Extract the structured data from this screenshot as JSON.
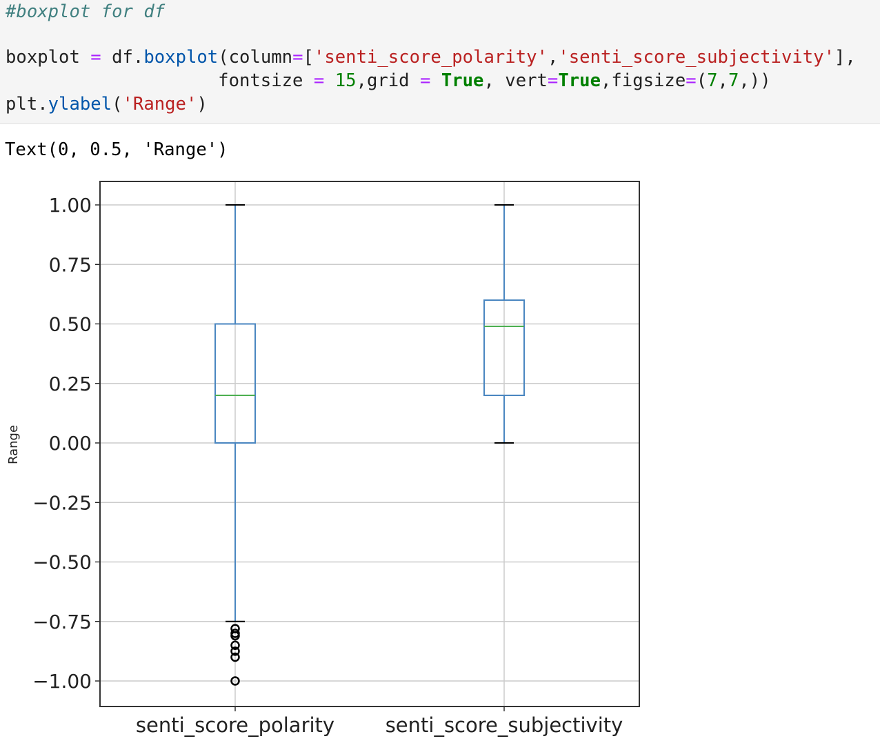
{
  "cell": {
    "code_lines": [
      [
        {
          "t": "#boxplot for df",
          "c": "comment"
        }
      ],
      [],
      [
        {
          "t": "boxplot ",
          "c": ""
        },
        {
          "t": "=",
          "c": "op"
        },
        {
          "t": " df.",
          "c": ""
        },
        {
          "t": "boxplot",
          "c": "call"
        },
        {
          "t": "(column",
          "c": ""
        },
        {
          "t": "=",
          "c": "op"
        },
        {
          "t": "[",
          "c": ""
        },
        {
          "t": "'senti_score_polarity'",
          "c": "str"
        },
        {
          "t": ",",
          "c": ""
        },
        {
          "t": "'senti_score_subjectivity'",
          "c": "str"
        },
        {
          "t": "],",
          "c": ""
        }
      ],
      [
        {
          "t": "                    fontsize ",
          "c": ""
        },
        {
          "t": "=",
          "c": "op"
        },
        {
          "t": " ",
          "c": ""
        },
        {
          "t": "15",
          "c": "num"
        },
        {
          "t": ",grid ",
          "c": ""
        },
        {
          "t": "=",
          "c": "op"
        },
        {
          "t": " ",
          "c": ""
        },
        {
          "t": "True",
          "c": "kw"
        },
        {
          "t": ", vert",
          "c": ""
        },
        {
          "t": "=",
          "c": "op"
        },
        {
          "t": "True",
          "c": "kw"
        },
        {
          "t": ",figsize",
          "c": ""
        },
        {
          "t": "=",
          "c": "op"
        },
        {
          "t": "(",
          "c": ""
        },
        {
          "t": "7",
          "c": "num"
        },
        {
          "t": ",",
          "c": ""
        },
        {
          "t": "7",
          "c": "num"
        },
        {
          "t": ",))",
          "c": ""
        }
      ],
      [
        {
          "t": "plt.",
          "c": ""
        },
        {
          "t": "ylabel",
          "c": "call"
        },
        {
          "t": "(",
          "c": ""
        },
        {
          "t": "'Range'",
          "c": "str"
        },
        {
          "t": ")",
          "c": ""
        }
      ]
    ],
    "output_text": "Text(0, 0.5, 'Range')"
  },
  "chart_data": {
    "type": "boxplot",
    "title": "",
    "xlabel": "",
    "ylabel": "Range",
    "ylim": [
      -1.1,
      1.1
    ],
    "yticks": [
      1.0,
      0.75,
      0.5,
      0.25,
      0.0,
      -0.25,
      -0.5,
      -0.75,
      -1.0
    ],
    "ytick_labels": [
      "1.00",
      "0.75",
      "0.50",
      "0.25",
      "0.00",
      "−0.25",
      "−0.50",
      "−0.75",
      "−1.00"
    ],
    "grid": true,
    "categories": [
      "senti_score_polarity",
      "senti_score_subjectivity"
    ],
    "boxes": [
      {
        "category": "senti_score_polarity",
        "whisker_low": -0.75,
        "q1": 0.0,
        "median": 0.2,
        "q3": 0.5,
        "whisker_high": 1.0,
        "outliers": [
          -0.78,
          -0.8,
          -0.81,
          -0.85,
          -0.875,
          -0.9,
          -1.0
        ]
      },
      {
        "category": "senti_score_subjectivity",
        "whisker_low": 0.0,
        "q1": 0.2,
        "median": 0.49,
        "q3": 0.6,
        "whisker_high": 1.0,
        "outliers": []
      }
    ],
    "colors": {
      "box": "#4a86c0",
      "median": "#4caf50",
      "whisker": "#4a86c0",
      "cap": "#000000",
      "grid": "#cccccc",
      "outlier": "#000000"
    }
  }
}
